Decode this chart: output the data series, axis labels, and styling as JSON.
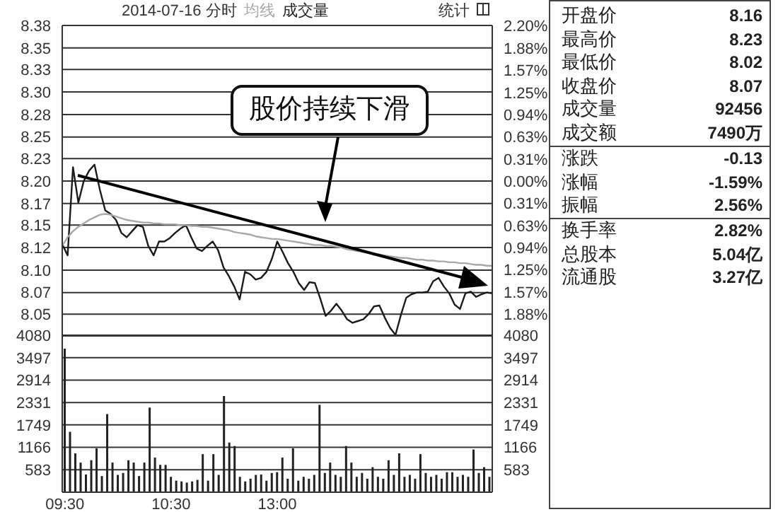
{
  "chart_data": [
    {
      "type": "line",
      "title": "2014-07-16 分时",
      "categories": [
        null,
        null,
        null,
        null,
        null,
        null,
        null,
        null,
        null,
        null,
        null,
        null,
        null,
        null,
        null,
        null,
        null,
        null,
        null,
        null,
        null,
        null,
        null,
        null,
        null,
        null,
        null,
        null,
        null,
        null,
        null,
        null,
        null,
        null,
        null,
        null,
        null,
        null,
        null,
        null,
        null,
        null,
        null,
        null,
        null,
        null,
        null,
        null,
        null,
        null,
        null,
        null,
        null,
        null,
        null,
        null,
        null,
        null,
        null,
        null,
        null,
        null,
        null,
        null,
        null,
        null,
        null,
        null,
        null,
        null,
        null,
        null,
        null,
        null,
        null,
        null,
        null,
        null,
        null,
        null,
        null
      ],
      "series": [
        {
          "color": "#1a1a1a",
          "values": [
            8.127,
            8.114,
            8.216,
            8.175,
            8.2,
            8.212,
            8.219,
            8.19,
            8.166,
            8.162,
            8.155,
            8.14,
            8.135,
            8.142,
            8.149,
            8.147,
            8.125,
            8.114,
            8.13,
            8.13,
            8.134,
            8.14,
            8.145,
            8.149,
            8.135,
            8.122,
            8.119,
            8.125,
            8.13,
            8.12,
            8.1,
            8.09,
            8.078,
            8.063,
            8.095,
            8.092,
            8.086,
            8.088,
            8.095,
            8.11,
            8.13,
            8.118,
            8.105,
            8.095,
            8.082,
            8.074,
            8.083,
            8.082,
            8.064,
            8.044,
            8.05,
            8.058,
            8.05,
            8.04,
            8.036,
            8.038,
            8.04,
            8.046,
            8.055,
            8.056,
            8.042,
            8.03,
            8.022,
            8.045,
            8.065,
            8.069,
            8.071,
            8.071,
            8.072,
            8.084,
            8.088,
            8.078,
            8.07,
            8.057,
            8.052,
            8.07,
            8.072,
            8.066,
            8.069,
            8.071,
            8.07
          ]
        },
        {
          "name": "均线",
          "color": "#a8a8a8",
          "values": [
            8.125,
            8.135,
            8.142,
            8.147,
            8.151,
            8.155,
            8.158,
            8.161,
            8.162,
            8.161,
            8.159,
            8.157,
            8.155,
            8.154,
            8.153,
            8.152,
            8.152,
            8.151,
            8.151,
            8.15,
            8.15,
            8.15,
            8.149,
            8.149,
            8.148,
            8.148,
            8.147,
            8.147,
            8.146,
            8.145,
            8.144,
            8.143,
            8.141,
            8.14,
            8.139,
            8.138,
            8.136,
            8.135,
            8.134,
            8.133,
            8.133,
            8.132,
            8.131,
            8.13,
            8.129,
            8.128,
            8.127,
            8.126,
            8.126,
            8.125,
            8.125,
            8.124,
            8.123,
            8.121,
            8.12,
            8.119,
            8.118,
            8.117,
            8.116,
            8.115,
            8.114,
            8.113,
            8.112,
            8.111,
            8.111,
            8.11,
            8.109,
            8.109,
            8.108,
            8.108,
            8.107,
            8.107,
            8.106,
            8.106,
            8.105,
            8.105,
            8.104,
            8.103,
            8.103,
            8.102,
            8.102
          ]
        }
      ],
      "ylim": [
        8.02,
        8.38
      ],
      "yticks": [
        {
          "value": 8.38,
          "label": "8.38"
        },
        {
          "value": 8.354,
          "label": "8.35"
        },
        {
          "value": 8.329,
          "label": "8.33"
        },
        {
          "value": 8.303,
          "label": "8.30"
        },
        {
          "value": 8.277,
          "label": "8.28"
        },
        {
          "value": 8.251,
          "label": "8.25"
        },
        {
          "value": 8.226,
          "label": "8.23"
        },
        {
          "value": 8.2,
          "label": "8.20"
        },
        {
          "value": 8.174,
          "label": "8.17"
        },
        {
          "value": 8.149,
          "label": "8.15"
        },
        {
          "value": 8.123,
          "label": "8.12"
        },
        {
          "value": 8.097,
          "label": "8.10"
        },
        {
          "value": 8.071,
          "label": "8.07"
        },
        {
          "value": 8.046,
          "label": "8.05"
        }
      ],
      "y2lim": [
        -2.2,
        2.2
      ],
      "y2ticks": [
        {
          "value": 2.2,
          "label": "2.20%"
        },
        {
          "value": 1.88,
          "label": "1.88%"
        },
        {
          "value": 1.57,
          "label": "1.57%"
        },
        {
          "value": 1.25,
          "label": "1.25%"
        },
        {
          "value": 0.94,
          "label": "0.94%"
        },
        {
          "value": 0.63,
          "label": "0.63%"
        },
        {
          "value": 0.31,
          "label": "0.31%"
        },
        {
          "value": 0,
          "label": "0.00%"
        },
        {
          "value": -0.31,
          "label": "0.31%"
        },
        {
          "value": -0.63,
          "label": "0.63%"
        },
        {
          "value": -0.94,
          "label": "0.94%"
        },
        {
          "value": -1.25,
          "label": "1.25%"
        },
        {
          "value": -1.57,
          "label": "1.57%"
        },
        {
          "value": -1.88,
          "label": "1.88%"
        }
      ],
      "grid": "y",
      "legend": "top",
      "tick_labels": "y",
      "annotations": [
        "股价持续下滑",
        "统计"
      ]
    },
    {
      "type": "bar",
      "categories": [
        "09:30",
        null,
        null,
        null,
        null,
        null,
        null,
        null,
        null,
        null,
        null,
        null,
        null,
        null,
        null,
        null,
        null,
        null,
        null,
        null,
        "10:30",
        null,
        null,
        null,
        null,
        null,
        null,
        null,
        null,
        null,
        null,
        null,
        null,
        null,
        null,
        null,
        null,
        null,
        null,
        null,
        "13:00",
        null,
        null,
        null,
        null,
        null,
        null,
        null,
        null,
        null,
        null,
        null,
        null,
        null,
        null,
        null,
        null,
        null,
        null,
        null,
        null,
        null,
        null,
        null,
        null,
        null,
        null,
        null,
        null,
        null,
        null,
        null,
        null,
        null,
        null,
        null,
        null,
        null,
        null,
        null,
        null
      ],
      "series": [
        {
          "name": "成交量",
          "color": "#222222",
          "values": [
            3730,
            1570,
            1010,
            770,
            460,
            830,
            1140,
            420,
            2030,
            770,
            450,
            500,
            830,
            770,
            420,
            770,
            2200,
            900,
            710,
            710,
            400,
            300,
            280,
            250,
            280,
            320,
            990,
            300,
            990,
            450,
            2500,
            1290,
            1200,
            400,
            280,
            350,
            450,
            460,
            300,
            500,
            520,
            900,
            350,
            1140,
            300,
            400,
            350,
            450,
            2270,
            500,
            770,
            450,
            400,
            1200,
            770,
            400,
            500,
            350,
            650,
            400,
            350,
            830,
            450,
            1010,
            400,
            450,
            350,
            990,
            500,
            400,
            450,
            350,
            520,
            520,
            400,
            450,
            400,
            1110,
            500,
            650,
            400
          ]
        }
      ],
      "ylim": [
        0,
        4080
      ],
      "yticks": [
        583,
        1166,
        1749,
        2331,
        2914,
        3497,
        4080
      ],
      "y2lim": [
        0,
        4080
      ],
      "y2ticks": [
        583,
        1166,
        1749,
        2331,
        2914,
        3497,
        4080
      ],
      "grid": "y",
      "legend": "top"
    },
    {
      "type": "other",
      "categories": [
        "开盘价",
        "最高价",
        "最低价",
        "收盘价",
        "成交量",
        "成交额"
      ],
      "value_labels": [
        "8.16",
        "8.23",
        "8.02",
        "8.07",
        "92456",
        "7490万"
      ]
    },
    {
      "type": "other",
      "categories": [
        "涨跌",
        "涨幅",
        "振幅"
      ],
      "value_labels": [
        "-0.13",
        "-1.59%",
        "2.56%"
      ]
    },
    {
      "type": "other",
      "categories": [
        "换手率",
        "总股本",
        "流通股"
      ],
      "value_labels": [
        "2.82%",
        "5.04亿",
        "3.27亿"
      ]
    }
  ]
}
